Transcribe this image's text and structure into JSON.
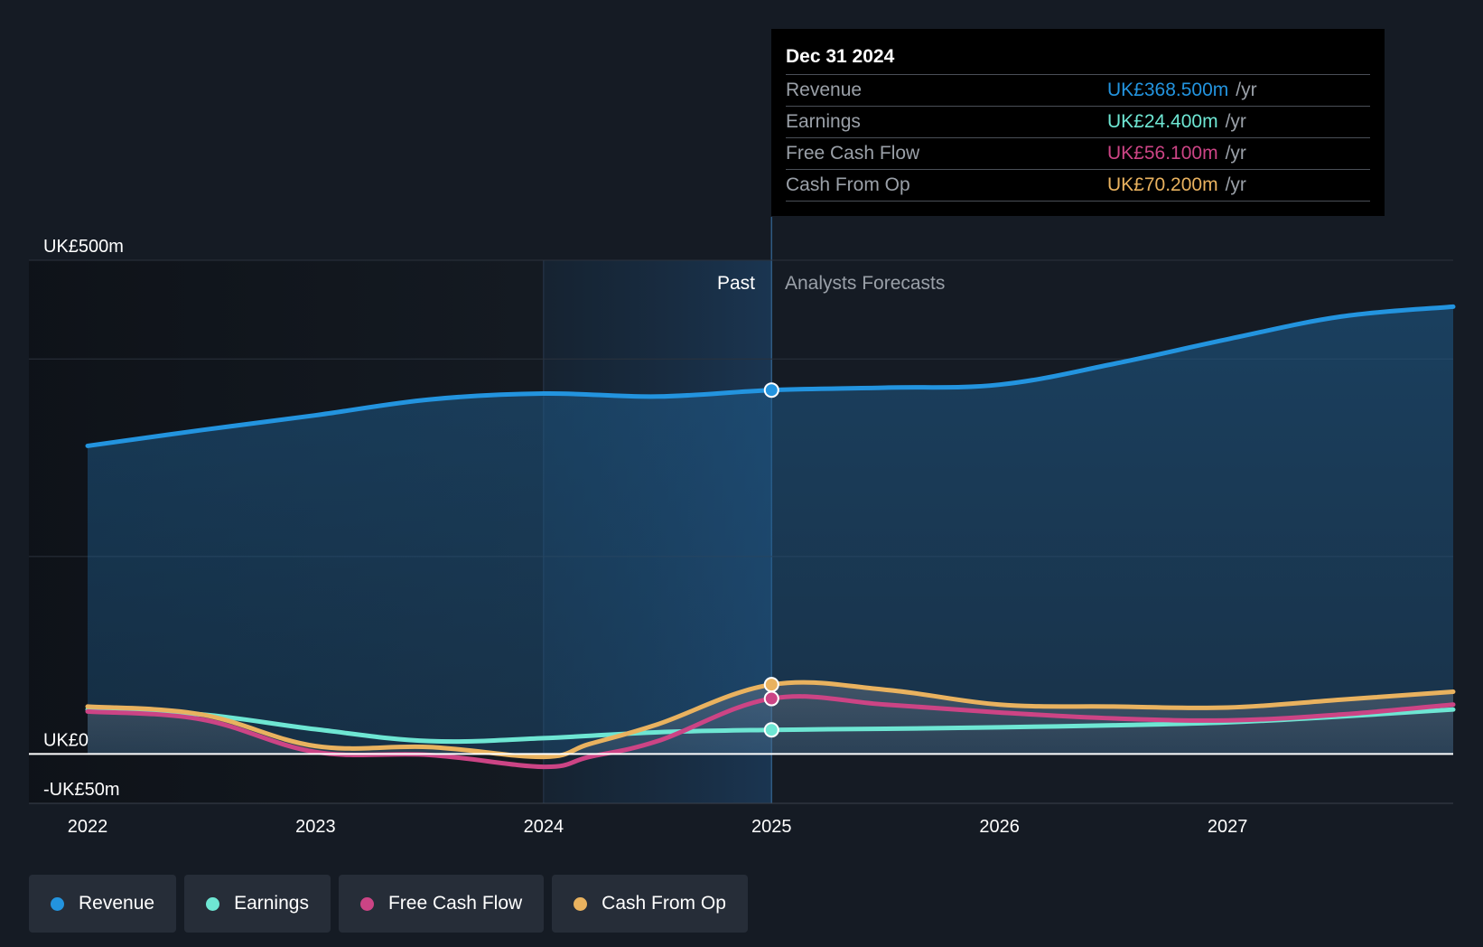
{
  "colors": {
    "revenue": "#2394df",
    "earnings": "#6ee6d3",
    "free_cash_flow": "#cc4485",
    "cash_from_op": "#e9b25f"
  },
  "tooltip": {
    "date": "Dec 31 2024",
    "rows": [
      {
        "name": "Revenue",
        "value": "UK£368.500m",
        "unit": "/yr"
      },
      {
        "name": "Earnings",
        "value": "UK£24.400m",
        "unit": "/yr"
      },
      {
        "name": "Free Cash Flow",
        "value": "UK£56.100m",
        "unit": "/yr"
      },
      {
        "name": "Cash From Op",
        "value": "UK£70.200m",
        "unit": "/yr"
      }
    ]
  },
  "labels": {
    "past": "Past",
    "forecast": "Analysts Forecasts"
  },
  "legend": [
    {
      "label": "Revenue",
      "color_key": "revenue"
    },
    {
      "label": "Earnings",
      "color_key": "earnings"
    },
    {
      "label": "Free Cash Flow",
      "color_key": "free_cash_flow"
    },
    {
      "label": "Cash From Op",
      "color_key": "cash_from_op"
    }
  ],
  "chart_data": {
    "type": "line",
    "title": "",
    "xlabel": "",
    "ylabel": "",
    "ylim": [
      -50,
      500
    ],
    "y_ticks": [
      {
        "value": 500,
        "label": "UK£500m"
      },
      {
        "value": 0,
        "label": "UK£0"
      },
      {
        "value": -50,
        "label": "-UK£50m"
      }
    ],
    "x_ticks": [
      {
        "value": 2022,
        "label": "2022"
      },
      {
        "value": 2023,
        "label": "2023"
      },
      {
        "value": 2024,
        "label": "2024"
      },
      {
        "value": 2025,
        "label": "2025"
      },
      {
        "value": 2026,
        "label": "2026"
      },
      {
        "value": 2027,
        "label": "2027"
      }
    ],
    "xlim": [
      2021.75,
      2027.99
    ],
    "past_range": [
      2024.0,
      2025.0
    ],
    "highlight_x": 2025.0,
    "series": [
      {
        "name": "Revenue",
        "key": "revenue",
        "fill": true,
        "x": [
          2022.0,
          2022.5,
          2023.0,
          2023.5,
          2024.0,
          2024.5,
          2025.0,
          2025.5,
          2026.0,
          2026.5,
          2027.0,
          2027.5,
          2027.99
        ],
        "y": [
          312,
          328,
          343,
          359,
          365,
          362,
          368.5,
          371,
          374,
          395,
          420,
          443,
          453
        ]
      },
      {
        "name": "Earnings",
        "key": "earnings",
        "x": [
          2022.0,
          2022.5,
          2023.0,
          2023.5,
          2024.0,
          2024.5,
          2025.0,
          2025.5,
          2026.0,
          2026.5,
          2027.0,
          2027.5,
          2027.99
        ],
        "y": [
          45,
          40,
          25,
          13,
          16,
          22,
          24.4,
          25.5,
          27,
          29,
          32,
          38,
          45
        ]
      },
      {
        "name": "Free Cash Flow",
        "key": "free_cash_flow",
        "x": [
          2022.0,
          2022.5,
          2023.0,
          2023.5,
          2024.0,
          2024.2,
          2024.5,
          2025.0,
          2025.5,
          2026.0,
          2026.5,
          2027.0,
          2027.5,
          2027.99
        ],
        "y": [
          43,
          35,
          2,
          -1,
          -13,
          -3,
          13,
          56.1,
          50,
          42,
          36,
          34,
          40,
          50
        ]
      },
      {
        "name": "Cash From Op",
        "key": "cash_from_op",
        "x": [
          2022.0,
          2022.5,
          2023.0,
          2023.5,
          2024.0,
          2024.2,
          2024.5,
          2025.0,
          2025.5,
          2026.0,
          2026.5,
          2027.0,
          2027.5,
          2027.99
        ],
        "y": [
          48,
          40,
          8,
          7,
          -3,
          10,
          30,
          70.2,
          65,
          50,
          48,
          47,
          55,
          63
        ]
      }
    ]
  }
}
